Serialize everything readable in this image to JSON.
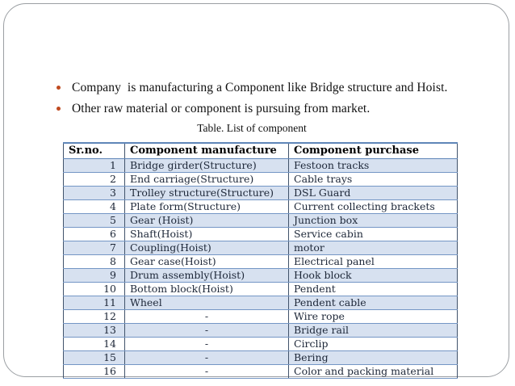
{
  "slide": {
    "bullets": [
      "Company  is manufacturing a Component like Bridge structure and Hoist.",
      "Other raw material or component is pursuing from market."
    ],
    "caption": "Table. List of component"
  },
  "table": {
    "headers": [
      "Sr.no.",
      "Component manufacture",
      "Component purchase"
    ],
    "rows": [
      [
        "1",
        "Bridge girder(Structure)",
        "Festoon tracks"
      ],
      [
        "2",
        "End carriage(Structure)",
        "Cable trays"
      ],
      [
        "3",
        "Trolley structure(Structure)",
        "DSL Guard"
      ],
      [
        "4",
        "Plate form(Structure)",
        "Current collecting brackets"
      ],
      [
        "5",
        "Gear (Hoist)",
        "Junction box"
      ],
      [
        "6",
        "Shaft(Hoist)",
        "Service cabin"
      ],
      [
        "7",
        "Coupling(Hoist)",
        "motor"
      ],
      [
        "8",
        "Gear case(Hoist)",
        "Electrical panel"
      ],
      [
        "9",
        "Drum assembly(Hoist)",
        "Hook block"
      ],
      [
        "10",
        "Bottom block(Hoist)",
        "Pendent"
      ],
      [
        "11",
        "Wheel",
        "Pendent cable"
      ],
      [
        "12",
        "-",
        "Wire rope"
      ],
      [
        "13",
        "-",
        "Bridge rail"
      ],
      [
        "14",
        "-",
        "Circlip"
      ],
      [
        "15",
        "-",
        "Bering"
      ],
      [
        "16",
        "-",
        "Color and packing material"
      ]
    ]
  },
  "colors": {
    "bullet": "#bf4a20",
    "row_band": "#d7e1f0",
    "table_border_horizontal": "#7496c5",
    "table_border_vertical": "#41536b",
    "slide_border": "#9b9fa3"
  }
}
